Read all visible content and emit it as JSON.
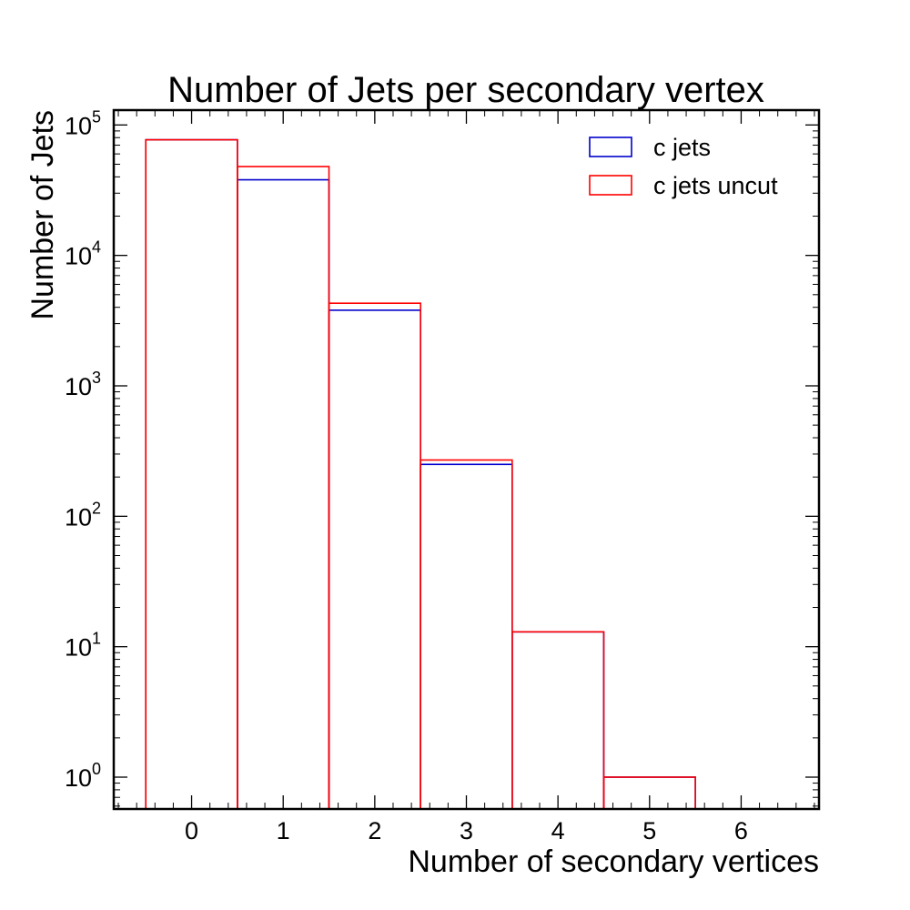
{
  "chart_data": {
    "type": "bar",
    "title": "Number of Jets per secondary vertex",
    "xlabel": "Number of secondary vertices",
    "ylabel": "Number of Jets",
    "yscale": "log",
    "xlim": [
      -0.85,
      6.85
    ],
    "ylim": [
      0.57,
      130000
    ],
    "x_ticks": [
      0,
      1,
      2,
      3,
      4,
      5,
      6
    ],
    "y_ticks": [
      {
        "base": "10",
        "exp": "0",
        "value": 1
      },
      {
        "base": "10",
        "exp": "1",
        "value": 10
      },
      {
        "base": "10",
        "exp": "2",
        "value": 100
      },
      {
        "base": "10",
        "exp": "3",
        "value": 1000
      },
      {
        "base": "10",
        "exp": "4",
        "value": 10000
      },
      {
        "base": "10",
        "exp": "5",
        "value": 100000
      }
    ],
    "bin_edges": [
      -0.5,
      0.5,
      1.5,
      2.5,
      3.5,
      4.5,
      5.5
    ],
    "series": [
      {
        "name": "c jets",
        "color": "#0000cc",
        "values": [
          77000,
          38000,
          3800,
          250,
          13,
          1
        ]
      },
      {
        "name": "c jets uncut",
        "color": "#ff0000",
        "values": [
          77000,
          48000,
          4300,
          270,
          13,
          1
        ]
      }
    ],
    "legend_position": "top-right",
    "grid": false
  }
}
